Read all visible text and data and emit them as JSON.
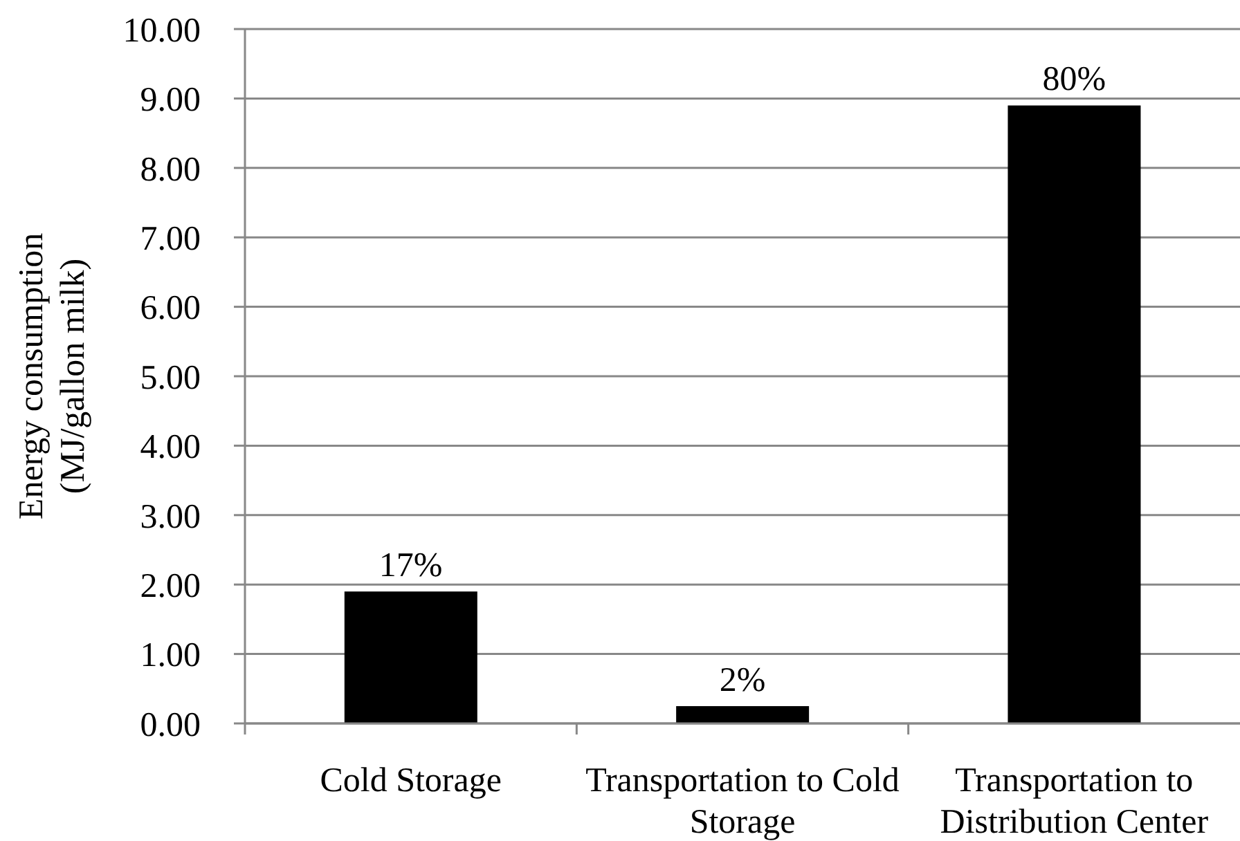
{
  "chart_data": {
    "type": "bar",
    "ylabel": "Energy consumption (MJ/gallon milk)",
    "categories": [
      "Cold Storage",
      "Transportation to Cold Storage",
      "Transportation to Distribution Center"
    ],
    "values": [
      1.9,
      0.25,
      8.9
    ],
    "color": "#000000",
    "annotations": [
      {
        "text": "17%",
        "x": "Cold Storage",
        "y": 1.9
      },
      {
        "text": "2%",
        "x": "Transportation to Cold Storage",
        "y": 0.25
      },
      {
        "text": "80%",
        "x": "Transportation to Distribution Center",
        "y": 8.9
      }
    ],
    "ylim": [
      0,
      10
    ],
    "yticks": [
      {
        "value": 0,
        "label": "0.00"
      },
      {
        "value": 1,
        "label": "1.00"
      },
      {
        "value": 2,
        "label": "2.00"
      },
      {
        "value": 3,
        "label": "3.00"
      },
      {
        "value": 4,
        "label": "4.00"
      },
      {
        "value": 5,
        "label": "5.00"
      },
      {
        "value": 6,
        "label": "6.00"
      },
      {
        "value": 7,
        "label": "7.00"
      },
      {
        "value": 8,
        "label": "8.00"
      },
      {
        "value": 9,
        "label": "9.00"
      },
      {
        "value": 10,
        "label": "10.00"
      }
    ],
    "grid": "y"
  }
}
